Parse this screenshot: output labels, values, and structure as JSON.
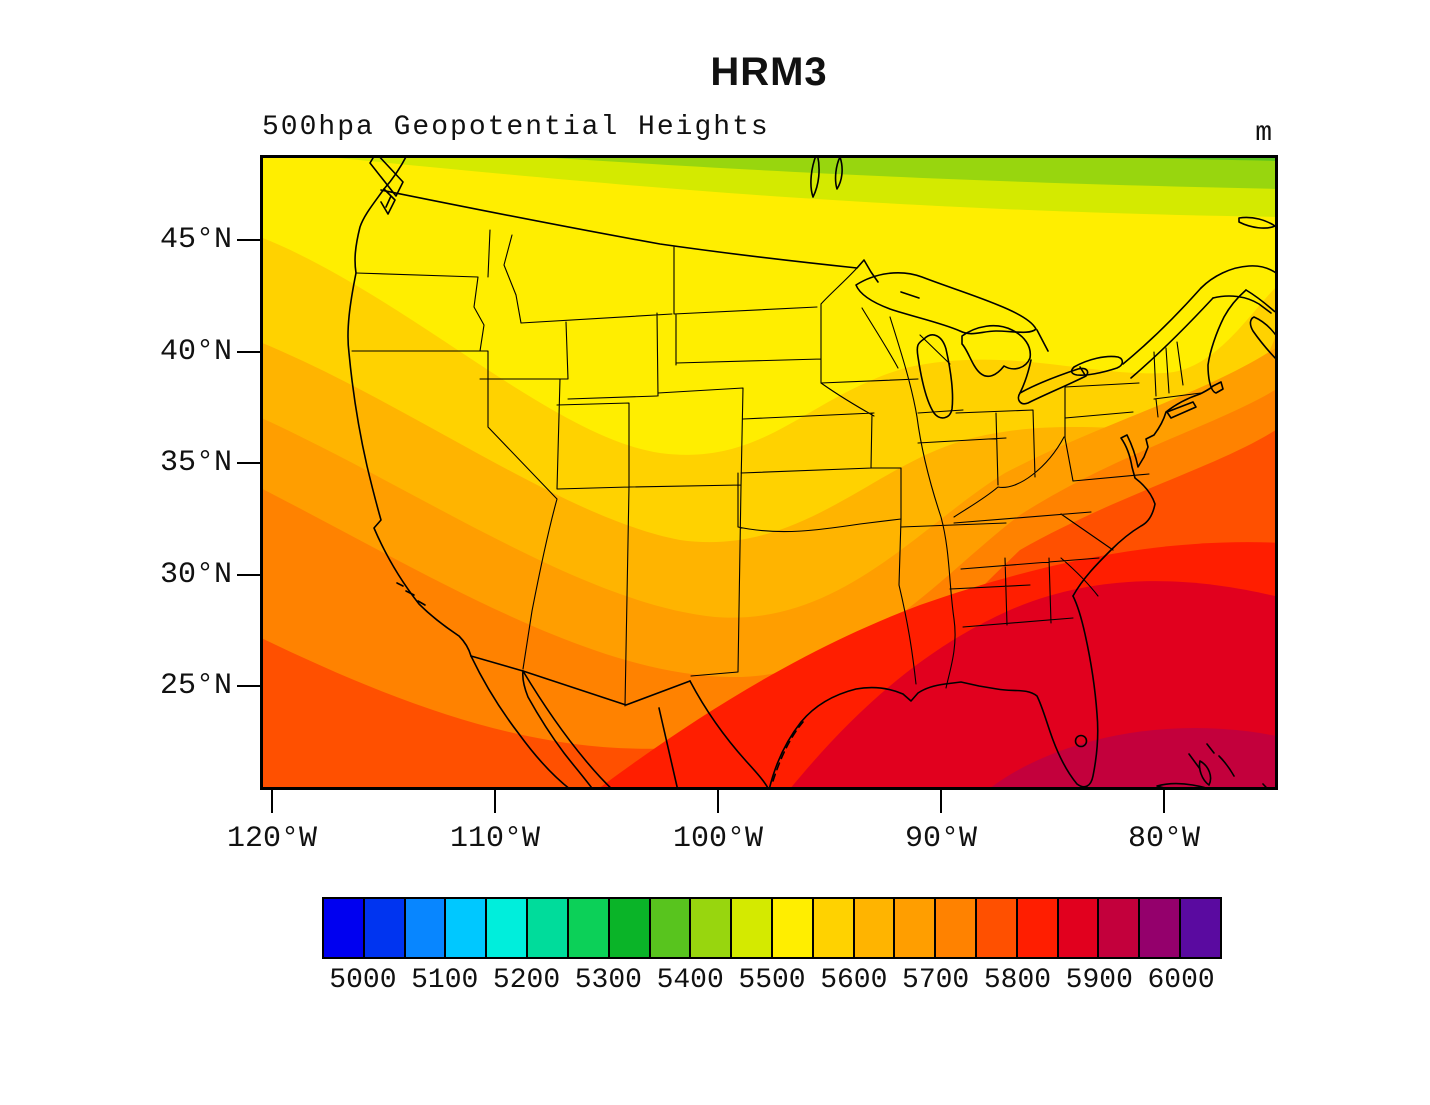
{
  "title": "HRM3",
  "subtitle": "500hpa Geopotential Heights",
  "units_label": "m",
  "y_axis": {
    "ticks": [
      "45°N",
      "40°N",
      "35°N",
      "30°N",
      "25°N"
    ]
  },
  "x_axis": {
    "ticks": [
      "120°W",
      "110°W",
      "100°W",
      "90°W",
      "80°W"
    ]
  },
  "colorbar": {
    "tick_labels": [
      "5000",
      "5100",
      "5200",
      "5300",
      "5400",
      "5500",
      "5600",
      "5700",
      "5800",
      "5900",
      "6000"
    ],
    "cell_colors": [
      "#0000f0",
      "#0034f0",
      "#0886ff",
      "#00c8ff",
      "#00eedc",
      "#00dc9b",
      "#0cd058",
      "#0ab428",
      "#58c41e",
      "#98d60e",
      "#d4ea00",
      "#ffee00",
      "#ffd200",
      "#ffb400",
      "#ff9e00",
      "#ff8200",
      "#ff5000",
      "#ff1e00",
      "#e1001e",
      "#c3003c",
      "#94006c",
      "#5a0aa0"
    ],
    "cell_span_m": 50,
    "min_value": 4950,
    "max_value": 6050
  },
  "chart_data": {
    "type": "filled_contour_map",
    "title": "HRM3",
    "field": "500hpa Geopotential Heights",
    "units": "m",
    "contour_interval_m": 50,
    "labeled_levels": [
      5000,
      5100,
      5200,
      5300,
      5400,
      5500,
      5600,
      5700,
      5800,
      5900,
      6000
    ],
    "palette_levels_start": 4950,
    "map_extent": {
      "lon_west": -120.6,
      "lon_east": -74.4,
      "lat_south": 21.7,
      "lat_north": 48.3
    },
    "grid": false,
    "legend_position": "bottom",
    "field_pattern": "heights increase from ~5350 m over southeastern Canada (top, green) to ~5950 m south of Florida (bottom right, dark magenta dome); bands dip southward along the US west coast and arc northeastward over the southeastern US ridge",
    "band_fills": {
      "5350": "#58c41e",
      "5400": "#98d60e",
      "5450": "#d4ea00",
      "5500": "#ffee00",
      "5550": "#ffd200",
      "5600": "#ffb400",
      "5650": "#ff9e00",
      "5700": "#ff8200",
      "5750": "#ff5000",
      "5800": "#ff1e00",
      "5850": "#e1001e",
      "5900": "#c3003c"
    },
    "visible_band_values_north_to_south": [
      5350,
      5400,
      5450,
      5500,
      5550,
      5600,
      5650,
      5700,
      5750,
      5800,
      5850,
      5900
    ],
    "approx_min_m": 5350,
    "approx_max_m": 5950
  }
}
